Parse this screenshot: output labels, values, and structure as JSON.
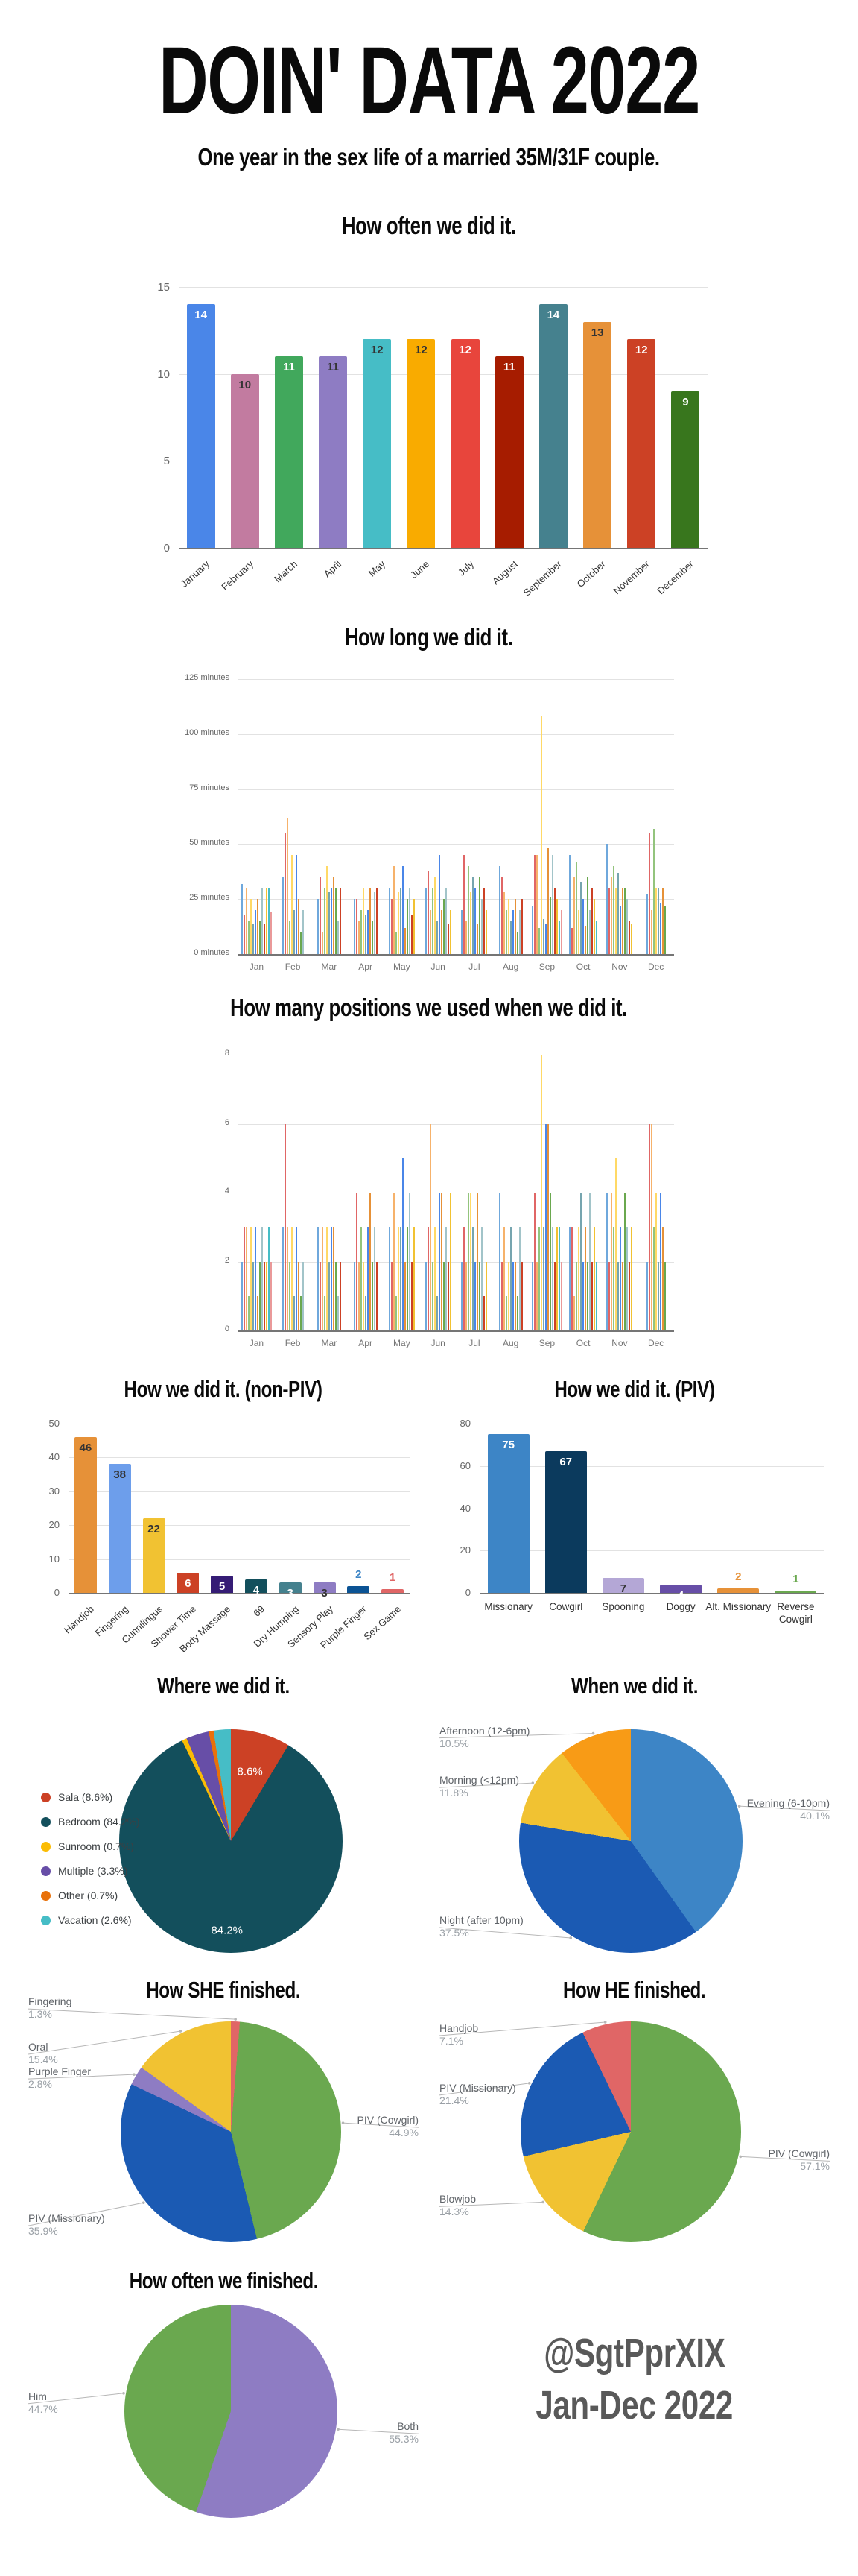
{
  "header": {
    "title": "DOIN' DATA 2022",
    "subtitle": "One year in the sex life of a married 35M/31F couple."
  },
  "footer": {
    "handle": "@SgtPprXIX",
    "period": "Jan-Dec 2022"
  },
  "chart_data": [
    {
      "id": "frequency",
      "type": "bar",
      "title": "How often we did it.",
      "categories": [
        "January",
        "February",
        "March",
        "April",
        "May",
        "June",
        "July",
        "August",
        "September",
        "October",
        "November",
        "December"
      ],
      "values": [
        14,
        10,
        11,
        11,
        12,
        12,
        12,
        11,
        14,
        13,
        12,
        9
      ],
      "colors": [
        "#4a86e8",
        "#c27ba0",
        "#41a85c",
        "#8e7cc3",
        "#46bdc6",
        "#f9ab00",
        "#e8453c",
        "#a61c00",
        "#45818e",
        "#e69138",
        "#cc4125",
        "#38761d"
      ],
      "label_colors": [
        "#ffffff",
        "#333333",
        "#ffffff",
        "#333333",
        "#333333",
        "#333333",
        "#ffffff",
        "#ffffff",
        "#ffffff",
        "#333333",
        "#ffffff",
        "#ffffff"
      ],
      "ylim": [
        0,
        15
      ],
      "yticks": [
        0,
        5,
        10,
        15
      ],
      "grid": true
    },
    {
      "id": "duration",
      "type": "bar",
      "title": "How long we did it.",
      "categories": [
        "Jan",
        "Feb",
        "Mar",
        "Apr",
        "May",
        "Jun",
        "Jul",
        "Aug",
        "Sep",
        "Oct",
        "Nov",
        "Dec"
      ],
      "ylabel": "minutes",
      "ylim": [
        0,
        125
      ],
      "yticks": [
        0,
        25,
        50,
        75,
        100,
        125
      ],
      "tick_suffix": " minutes",
      "grid": true,
      "sessions_per_month": [
        [
          32,
          18,
          30,
          15,
          25,
          14,
          20,
          25,
          15,
          30,
          14,
          30,
          30,
          19
        ],
        [
          35,
          55,
          62,
          15,
          45,
          20,
          45,
          25,
          10,
          20
        ],
        [
          25,
          35,
          10,
          30,
          40,
          28,
          30,
          35,
          30,
          15,
          30
        ],
        [
          25,
          25,
          15,
          20,
          30,
          18,
          20,
          30,
          15,
          28,
          30
        ],
        [
          30,
          25,
          40,
          10,
          28,
          30,
          40,
          12,
          25,
          30,
          18,
          25
        ],
        [
          30,
          38,
          20,
          30,
          35,
          15,
          45,
          20,
          25,
          30,
          14,
          20
        ],
        [
          20,
          45,
          15,
          40,
          28,
          35,
          30,
          14,
          35,
          25,
          30,
          20
        ],
        [
          40,
          35,
          28,
          20,
          25,
          15,
          20,
          25,
          10,
          20,
          25
        ],
        [
          22,
          45,
          45,
          12,
          108,
          16,
          14,
          48,
          26,
          45,
          30,
          25,
          15,
          20
        ],
        [
          45,
          12,
          35,
          42,
          20,
          33,
          25,
          13,
          35,
          20,
          30,
          25,
          15
        ],
        [
          50,
          30,
          35,
          40,
          30,
          37,
          22,
          30,
          30,
          25,
          15,
          14
        ],
        [
          27,
          55,
          20,
          57,
          30,
          30,
          23,
          30,
          22
        ]
      ]
    },
    {
      "id": "positions",
      "type": "bar",
      "title": "How many positions we used when we did it.",
      "categories": [
        "Jan",
        "Feb",
        "Mar",
        "Apr",
        "May",
        "Jun",
        "Jul",
        "Aug",
        "Sep",
        "Oct",
        "Nov",
        "Dec"
      ],
      "ylim": [
        0,
        8
      ],
      "yticks": [
        0,
        2,
        4,
        6,
        8
      ],
      "grid": true,
      "sessions_per_month": [
        [
          2,
          3,
          3,
          1,
          3,
          2,
          3,
          1,
          2,
          3,
          2,
          2,
          3,
          2
        ],
        [
          3,
          6,
          3,
          2,
          3,
          1,
          3,
          2,
          1,
          2
        ],
        [
          3,
          2,
          3,
          1,
          3,
          2,
          3,
          3,
          2,
          1,
          2
        ],
        [
          2,
          4,
          2,
          3,
          2,
          1,
          3,
          4,
          2,
          3,
          2
        ],
        [
          3,
          2,
          4,
          1,
          3,
          3,
          5,
          2,
          3,
          4,
          2,
          3
        ],
        [
          2,
          3,
          6,
          2,
          3,
          1,
          4,
          4,
          2,
          3,
          2,
          4
        ],
        [
          2,
          3,
          2,
          4,
          4,
          3,
          2,
          4,
          2,
          3,
          1,
          2
        ],
        [
          4,
          2,
          3,
          1,
          2,
          3,
          2,
          2,
          1,
          3,
          2
        ],
        [
          2,
          4,
          2,
          3,
          8,
          3,
          6,
          6,
          4,
          3,
          2,
          3,
          3,
          2
        ],
        [
          3,
          3,
          1,
          2,
          3,
          4,
          2,
          3,
          2,
          4,
          2,
          3,
          2
        ],
        [
          4,
          2,
          4,
          3,
          5,
          2,
          3,
          2,
          4,
          3,
          2,
          3
        ],
        [
          2,
          6,
          6,
          3,
          4,
          2,
          4,
          3,
          2
        ]
      ]
    },
    {
      "id": "non_piv",
      "type": "bar",
      "title": "How we did it. (non-PIV)",
      "categories": [
        "Handjob",
        "Fingering",
        "Cunnilingus",
        "Shower Time",
        "Body Massage",
        "69",
        "Dry Humping",
        "Sensory Play",
        "Purple Finger",
        "Sex Game"
      ],
      "values": [
        46,
        38,
        22,
        6,
        5,
        4,
        3,
        3,
        2,
        1
      ],
      "colors": [
        "#e69138",
        "#6d9eeb",
        "#f1c232",
        "#cc4125",
        "#351c75",
        "#134f5c",
        "#45818e",
        "#8e7cc3",
        "#0b5394",
        "#e06666"
      ],
      "label_colors": [
        "#333333",
        "#333333",
        "#333333",
        "#ffffff",
        "#ffffff",
        "#ffffff",
        "#ffffff",
        "#333333",
        "#3d85c6",
        "#e06666"
      ],
      "ylim": [
        0,
        50
      ],
      "yticks": [
        0,
        10,
        20,
        30,
        40,
        50
      ],
      "grid": true
    },
    {
      "id": "piv",
      "type": "bar",
      "title": "How we did it. (PIV)",
      "categories": [
        "Missionary",
        "Cowgirl",
        "Spooning",
        "Doggy",
        "Alt. Missionary",
        "Reverse Cowgirl"
      ],
      "values": [
        75,
        67,
        7,
        4,
        2,
        1
      ],
      "colors": [
        "#3d85c6",
        "#0b3a5d",
        "#b4a7d6",
        "#674ea7",
        "#e69138",
        "#6aa84f"
      ],
      "label_colors": [
        "#ffffff",
        "#ffffff",
        "#333333",
        "#ffffff",
        "#e69138",
        "#6aa84f"
      ],
      "ylim": [
        0,
        80
      ],
      "yticks": [
        0,
        20,
        40,
        60,
        80
      ],
      "grid": true
    },
    {
      "id": "where",
      "type": "pie",
      "title": "Where we did it.",
      "legend_position": "left",
      "slices": [
        {
          "label": "Sala",
          "pct": 8.6,
          "color": "#cc4125"
        },
        {
          "label": "Bedroom",
          "pct": 84.2,
          "color": "#134f5c"
        },
        {
          "label": "Sunroom",
          "pct": 0.7,
          "color": "#fbbc04"
        },
        {
          "label": "Multiple",
          "pct": 3.3,
          "color": "#674ea7"
        },
        {
          "label": "Other",
          "pct": 0.7,
          "color": "#e8710a"
        },
        {
          "label": "Vacation",
          "pct": 2.6,
          "color": "#46bdc6"
        }
      ]
    },
    {
      "id": "when",
      "type": "pie",
      "title": "When we did it.",
      "slices": [
        {
          "label": "Evening (6-10pm)",
          "pct": 40.1,
          "color": "#3d85c6",
          "side": "right"
        },
        {
          "label": "Night (after 10pm)",
          "pct": 37.5,
          "color": "#1b5ab3",
          "side": "left"
        },
        {
          "label": "Morning (<12pm)",
          "pct": 11.8,
          "color": "#f1c232",
          "side": "left"
        },
        {
          "label": "Afternoon (12-6pm)",
          "pct": 10.5,
          "color": "#f89b16",
          "side": "left"
        }
      ]
    },
    {
      "id": "she",
      "type": "pie",
      "title": "How SHE finished.",
      "slices": [
        {
          "label": "Fingering",
          "pct": 1.3,
          "color": "#e06666",
          "side": "left"
        },
        {
          "label": "PIV (Cowgirl)",
          "pct": 44.9,
          "color": "#6aa84f",
          "side": "right"
        },
        {
          "label": "PIV (Missionary)",
          "pct": 35.9,
          "color": "#1b5ab3",
          "side": "left"
        },
        {
          "label": "Purple Finger",
          "pct": 2.8,
          "color": "#8e7cc3",
          "side": "left"
        },
        {
          "label": "Oral",
          "pct": 15.4,
          "color": "#f1c232",
          "side": "left"
        }
      ]
    },
    {
      "id": "he",
      "type": "pie",
      "title": "How HE finished.",
      "slices": [
        {
          "label": "PIV (Cowgirl)",
          "pct": 57.1,
          "color": "#6aa84f",
          "side": "right"
        },
        {
          "label": "Blowjob",
          "pct": 14.3,
          "color": "#f1c232",
          "side": "left"
        },
        {
          "label": "PIV (Missionary)",
          "pct": 21.4,
          "color": "#1b5ab3",
          "side": "left"
        },
        {
          "label": "Handjob",
          "pct": 7.1,
          "color": "#e06666",
          "side": "left"
        }
      ]
    },
    {
      "id": "finished",
      "type": "pie",
      "title": "How often we finished.",
      "slices": [
        {
          "label": "Both",
          "pct": 55.3,
          "color": "#8e7cc3",
          "side": "right"
        },
        {
          "label": "Him",
          "pct": 44.7,
          "color": "#6aa84f",
          "side": "left"
        }
      ]
    }
  ]
}
